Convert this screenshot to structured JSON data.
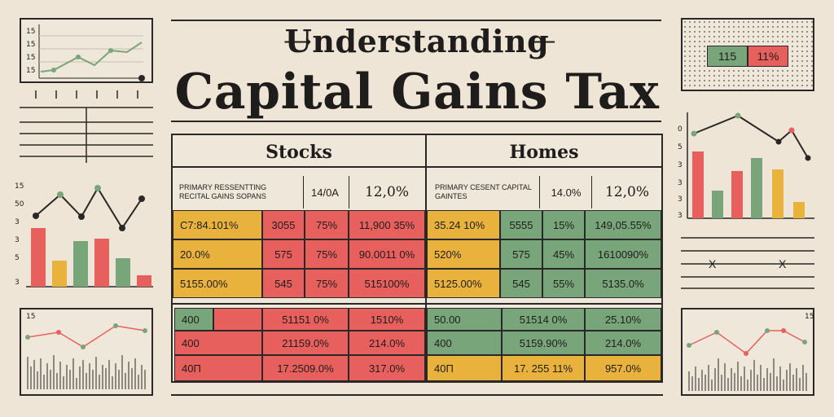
{
  "title": {
    "line1": "Understanding",
    "line2": "Capital Gains Tax"
  },
  "columns": {
    "stocks": "Stocks",
    "homes": "Homes"
  },
  "stocks": {
    "subheader": {
      "label": "PRIMARY RESSENTTING RECITAL GAINS SOPANS",
      "v1": "14/0A",
      "v2": "12,0%"
    },
    "rows": [
      [
        "C7:84.101%",
        "3055",
        "75%",
        "11,900 35%"
      ],
      [
        "20.0%",
        "575",
        "75%",
        "90.0011 0%"
      ],
      [
        "5155.00%",
        "545",
        "75%",
        "515100%"
      ]
    ],
    "rows2": [
      [
        "400",
        "51151 0%",
        "1510%"
      ],
      [
        "400",
        "21159.0%",
        "214.0%"
      ],
      [
        "40П",
        "17.2509.0%",
        "317.0%"
      ]
    ]
  },
  "homes": {
    "subheader": {
      "label": "PRIMARY CESENT CAPITAL GAINTES",
      "v1": "14.0%",
      "v2": "12,0%"
    },
    "rows": [
      [
        "35.24 10%",
        "5555",
        "15%",
        "149,05.55%"
      ],
      [
        "520%",
        "575",
        "45%",
        "1610090%"
      ],
      [
        "5125.00%",
        "545",
        "55%",
        "5135.0%"
      ]
    ],
    "rows2": [
      [
        "50.00",
        "51514 0%",
        "25.10%"
      ],
      [
        "400",
        "5159.90%",
        "214.0%"
      ],
      [
        "40П",
        "17. 255 11%",
        "957.0%"
      ]
    ]
  },
  "side": {
    "topleft_ticks": [
      "15",
      "15",
      "15",
      "15"
    ],
    "midleft_ticks": [
      "15",
      "50",
      "3",
      "3",
      "5",
      "3"
    ],
    "botleft_tick": "15",
    "topright_badges": [
      "115",
      "11%"
    ],
    "midright_ticks": [
      "0",
      "5",
      "3",
      "3",
      "3",
      "3"
    ],
    "botright_tick": "15",
    "cross_marks": [
      "X",
      "X"
    ]
  },
  "colors": {
    "red": "#e7605e",
    "green": "#79a57b",
    "yellow": "#e9b23c"
  }
}
